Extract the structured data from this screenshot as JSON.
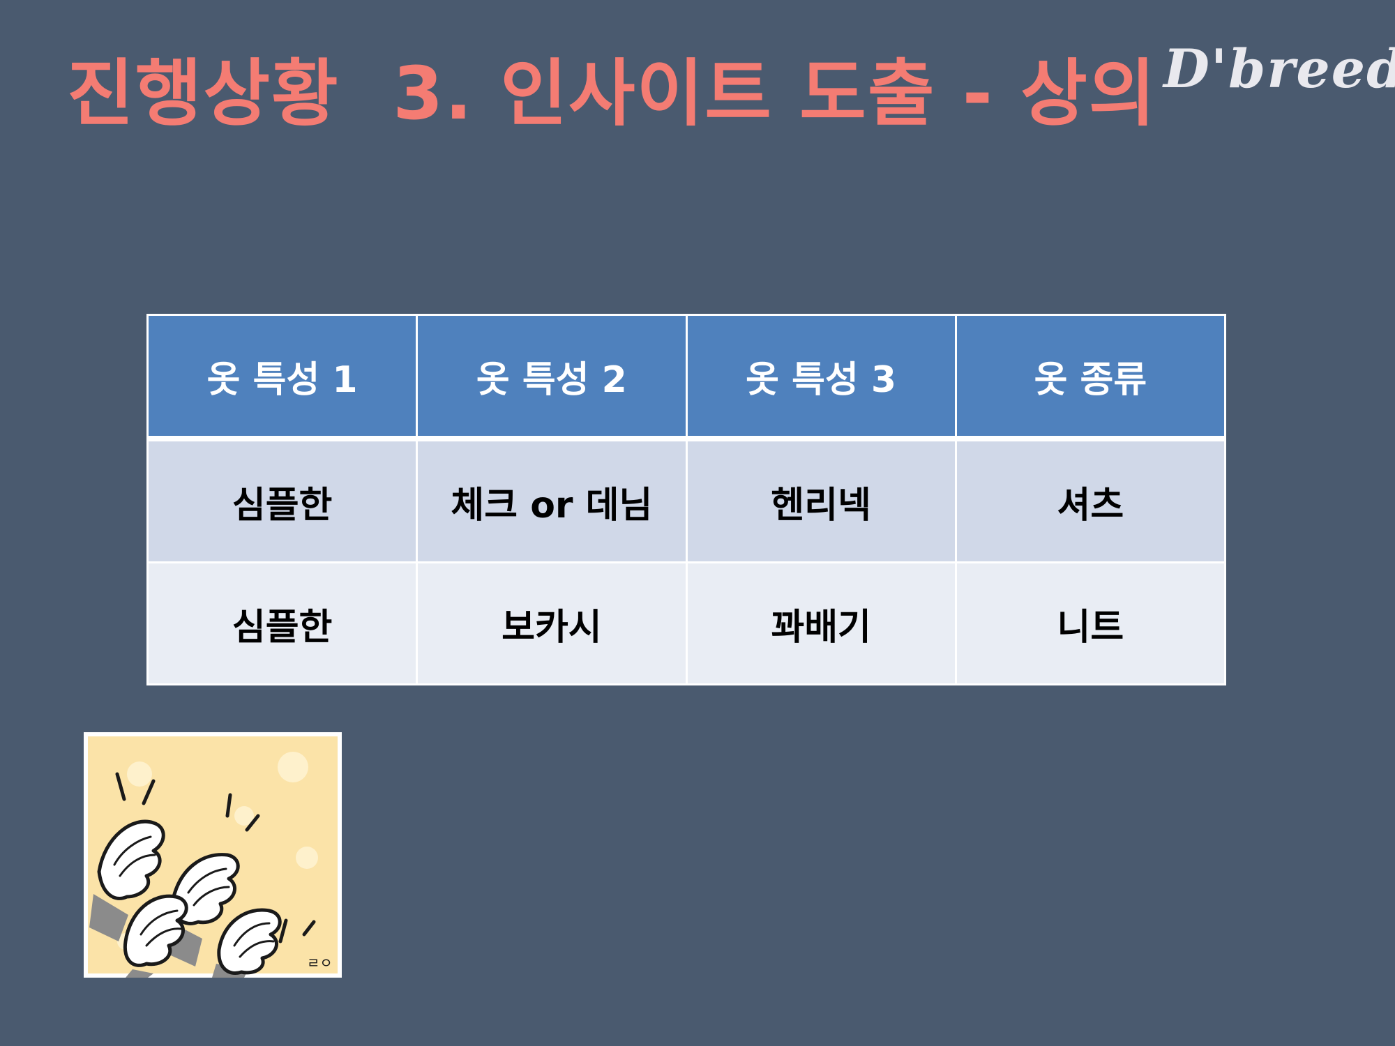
{
  "slide": {
    "title": "진행상황  3. 인사이트 도출 - 상의",
    "logo_text": "D'breed"
  },
  "table": {
    "headers": [
      "옷 특성 1",
      "옷 특성 2",
      "옷 특성 3",
      "옷 종류"
    ],
    "rows": [
      [
        "심플한",
        "체크 or 데님",
        "헨리넥",
        "셔츠"
      ],
      [
        "심플한",
        "보카시",
        "꽈배기",
        "니트"
      ]
    ]
  },
  "colors": {
    "background": "#4a5a6f",
    "title": "#f47c73",
    "header_fill": "#4f81bd",
    "row_a_fill": "#d0d8e8",
    "row_b_fill": "#e9edf4"
  },
  "clip_art": {
    "icon": "clapping-hands-icon",
    "signature": "ㄹㅇ"
  }
}
